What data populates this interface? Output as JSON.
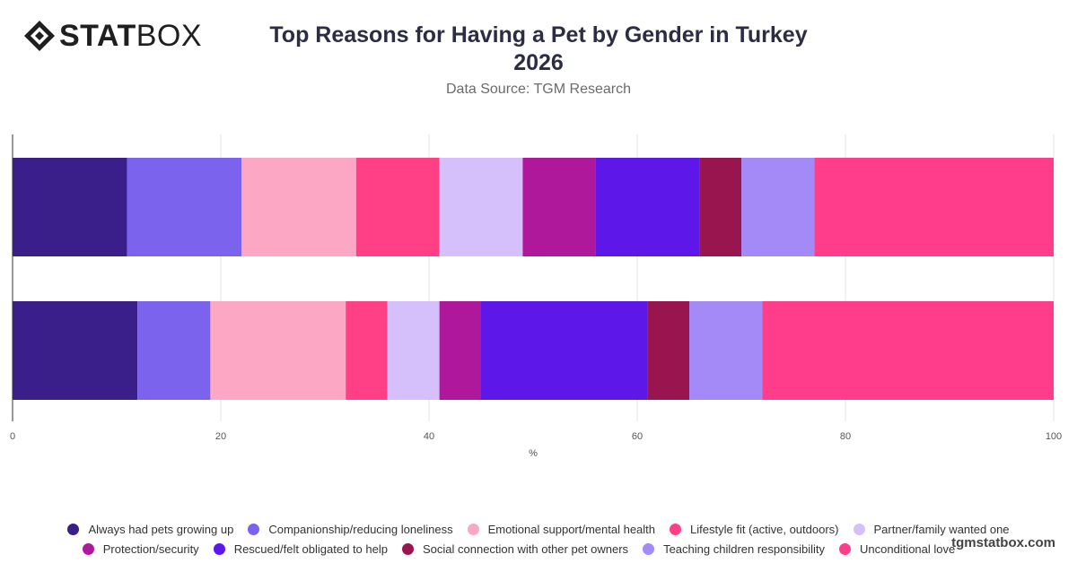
{
  "brand": {
    "bold": "STAT",
    "light": "BOX"
  },
  "title_line1": "Top Reasons for Having a Pet by Gender in Turkey",
  "title_line2": "2026",
  "subtitle": "Data Source: TGM Research",
  "credit": "tgmstatbox.com",
  "chart_data": {
    "type": "bar",
    "orientation": "horizontal",
    "stacked": true,
    "title": "Top Reasons for Having a Pet by Gender in Turkey 2026",
    "subtitle": "Data Source: TGM Research",
    "xlabel": "%",
    "ylabel": "",
    "xlim": [
      0,
      100
    ],
    "xticks": [
      "0",
      "20",
      "40",
      "60",
      "80",
      "100"
    ],
    "grid": true,
    "legend_position": "bottom",
    "categories": [
      "",
      ""
    ],
    "series": [
      {
        "name": "Always had pets growing up",
        "color": "#3a1f8a",
        "values": [
          11,
          12
        ]
      },
      {
        "name": "Companionship/reducing loneliness",
        "color": "#7b63ee",
        "values": [
          11,
          7
        ]
      },
      {
        "name": "Emotional support/mental health",
        "color": "#fca7c4",
        "values": [
          11,
          13
        ]
      },
      {
        "name": "Lifestyle fit (active, outdoors)",
        "color": "#ff3f86",
        "values": [
          8,
          4
        ]
      },
      {
        "name": "Partner/family wanted one",
        "color": "#d6c0fb",
        "values": [
          8,
          5
        ]
      },
      {
        "name": "Protection/security",
        "color": "#b0189c",
        "values": [
          7,
          4
        ]
      },
      {
        "name": "Rescued/felt obligated to help",
        "color": "#5d17e8",
        "values": [
          10,
          16
        ]
      },
      {
        "name": "Social connection with other pet owners",
        "color": "#99154f",
        "values": [
          4,
          4
        ]
      },
      {
        "name": "Teaching children responsibility",
        "color": "#a48af7",
        "values": [
          7,
          7
        ]
      },
      {
        "name": "Unconditional love",
        "color": "#ff3d8b",
        "values": [
          23,
          28
        ]
      }
    ]
  }
}
